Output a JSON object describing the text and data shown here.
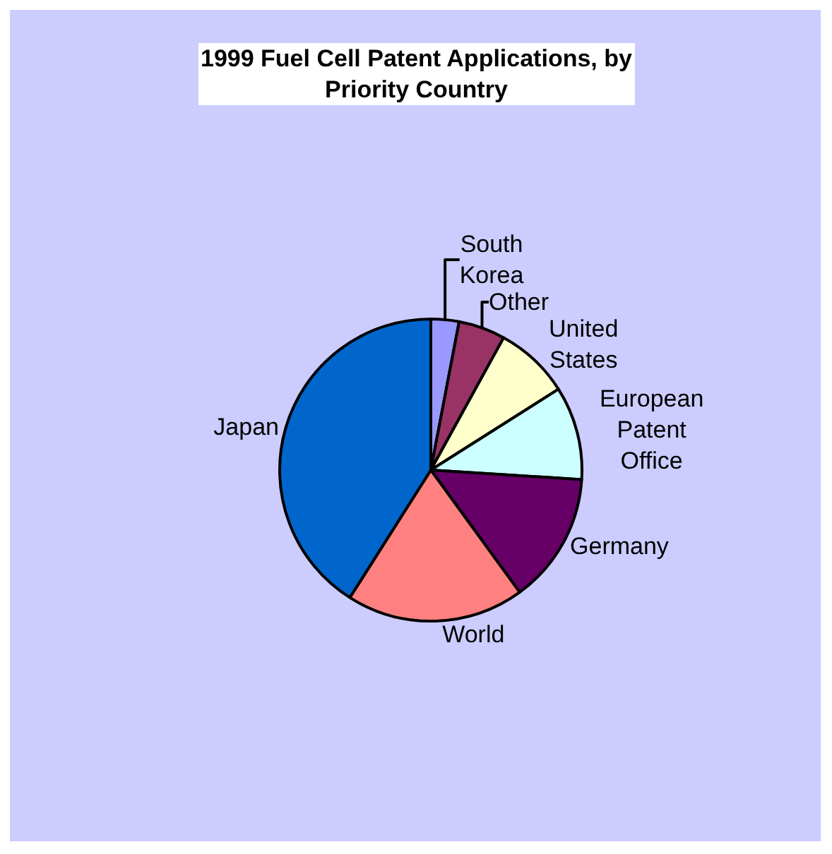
{
  "chart_data": {
    "type": "pie",
    "title": "1999 Fuel Cell Patent Applications, by Priority Country",
    "categories": [
      "South Korea",
      "Other",
      "United States",
      "European Patent Office",
      "Germany",
      "World",
      "Japan"
    ],
    "values": [
      3,
      5,
      8,
      10,
      14,
      19,
      41
    ],
    "colors": [
      "#9999ff",
      "#993366",
      "#ffffcc",
      "#ccffff",
      "#660066",
      "#ff8080",
      "#0066cc"
    ],
    "legend": false
  }
}
